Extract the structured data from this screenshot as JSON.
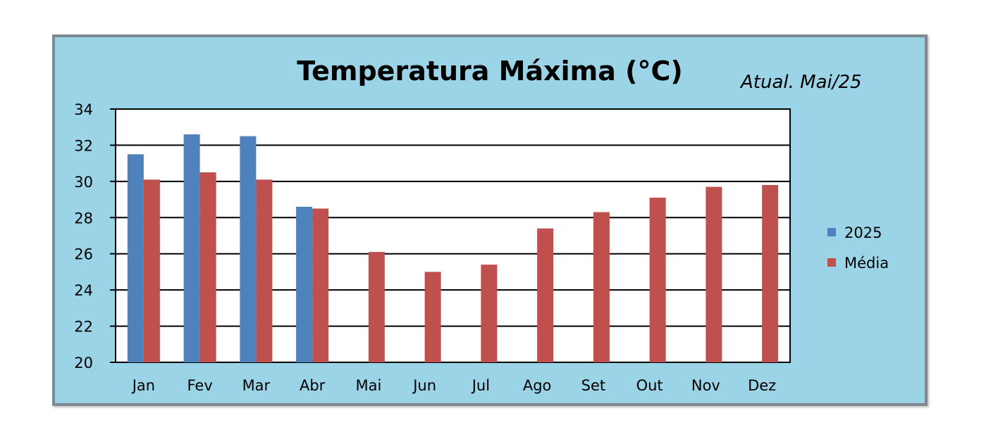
{
  "chart_data": {
    "type": "bar",
    "title": "Temperatura Máxima (°C)",
    "annotation": "Atual. Mai/25",
    "categories": [
      "Jan",
      "Fev",
      "Mar",
      "Abr",
      "Mai",
      "Jun",
      "Jul",
      "Ago",
      "Set",
      "Out",
      "Nov",
      "Dez"
    ],
    "series": [
      {
        "name": "2025",
        "color": "#4f81bd",
        "values": [
          31.5,
          32.6,
          32.5,
          28.6,
          null,
          null,
          null,
          null,
          null,
          null,
          null,
          null
        ]
      },
      {
        "name": "Média",
        "color": "#c0504d",
        "values": [
          30.1,
          30.5,
          30.1,
          28.5,
          26.1,
          25.0,
          25.4,
          27.4,
          28.3,
          29.1,
          29.7,
          29.8
        ]
      }
    ],
    "ylim": [
      20,
      34
    ],
    "yticks": [
      20,
      22,
      24,
      26,
      28,
      30,
      32,
      34
    ],
    "grid": true,
    "legend": "right",
    "colors": {
      "background": "#9ad4e6",
      "plot_area": "#ffffff",
      "grid": "#000000"
    }
  }
}
